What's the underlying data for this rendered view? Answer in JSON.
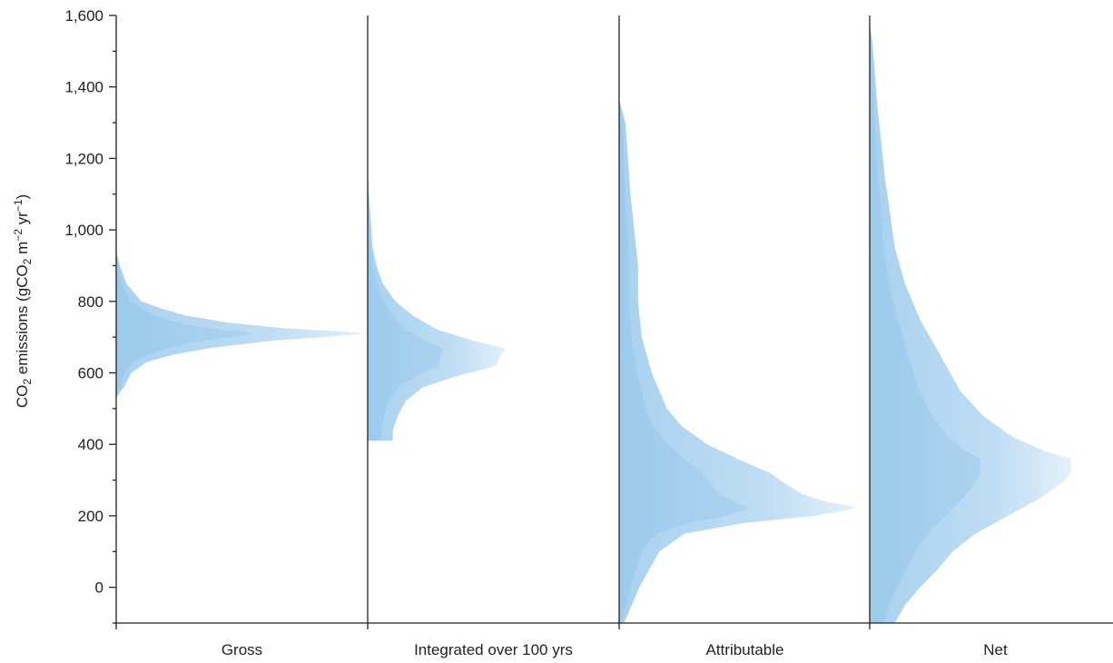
{
  "chart_data": {
    "type": "area",
    "categories": [
      "Gross",
      "Integrated over 100 yrs",
      "Attributable",
      "Net"
    ],
    "ylabel": {
      "prefix": "CO",
      "sub1": "2",
      "middle": " emissions (gCO",
      "sub2": "2",
      "unit_m": " m",
      "sup1": "−2",
      "unit_yr": " yr",
      "sup2": "−1",
      "suffix": ")"
    },
    "ylim": [
      -100,
      1600
    ],
    "yticks": [
      0,
      200,
      400,
      600,
      800,
      1000,
      1200,
      1400,
      1600
    ],
    "ytick_labels": [
      "0",
      "200",
      "400",
      "600",
      "800",
      "1,000",
      "1,200",
      "1,400",
      "1,600"
    ],
    "fill_color": "#62ade3",
    "distributions": [
      {
        "name": "Gross",
        "profile": [
          [
            530,
            0
          ],
          [
            560,
            0.03
          ],
          [
            600,
            0.06
          ],
          [
            630,
            0.12
          ],
          [
            650,
            0.22
          ],
          [
            670,
            0.38
          ],
          [
            690,
            0.62
          ],
          [
            700,
            0.82
          ],
          [
            710,
            0.99
          ],
          [
            715,
            0.92
          ],
          [
            725,
            0.66
          ],
          [
            740,
            0.45
          ],
          [
            760,
            0.28
          ],
          [
            780,
            0.18
          ],
          [
            800,
            0.1
          ],
          [
            850,
            0.04
          ],
          [
            900,
            0.015
          ],
          [
            940,
            0
          ]
        ]
      },
      {
        "name": "Integrated over 100 yrs",
        "profile": [
          [
            410,
            0
          ],
          [
            411,
            0.1
          ],
          [
            440,
            0.1
          ],
          [
            480,
            0.12
          ],
          [
            520,
            0.15
          ],
          [
            560,
            0.22
          ],
          [
            590,
            0.35
          ],
          [
            620,
            0.51
          ],
          [
            650,
            0.53
          ],
          [
            668,
            0.55
          ],
          [
            690,
            0.42
          ],
          [
            720,
            0.28
          ],
          [
            760,
            0.18
          ],
          [
            800,
            0.11
          ],
          [
            850,
            0.06
          ],
          [
            900,
            0.035
          ],
          [
            950,
            0.02
          ],
          [
            1050,
            0.01
          ],
          [
            1100,
            0.005
          ],
          [
            1160,
            0
          ]
        ]
      },
      {
        "name": "Attributable",
        "profile": [
          [
            -100,
            0.02
          ],
          [
            -50,
            0.05
          ],
          [
            0,
            0.08
          ],
          [
            50,
            0.12
          ],
          [
            100,
            0.16
          ],
          [
            150,
            0.26
          ],
          [
            180,
            0.5
          ],
          [
            200,
            0.78
          ],
          [
            215,
            0.9
          ],
          [
            225,
            0.94
          ],
          [
            240,
            0.82
          ],
          [
            260,
            0.73
          ],
          [
            290,
            0.66
          ],
          [
            320,
            0.6
          ],
          [
            350,
            0.5
          ],
          [
            400,
            0.35
          ],
          [
            450,
            0.25
          ],
          [
            500,
            0.19
          ],
          [
            600,
            0.13
          ],
          [
            700,
            0.09
          ],
          [
            800,
            0.075
          ],
          [
            900,
            0.075
          ],
          [
            1000,
            0.06
          ],
          [
            1100,
            0.045
          ],
          [
            1200,
            0.035
          ],
          [
            1300,
            0.025
          ],
          [
            1365,
            0
          ]
        ]
      },
      {
        "name": "Net",
        "profile": [
          [
            -100,
            0.1
          ],
          [
            -50,
            0.14
          ],
          [
            0,
            0.2
          ],
          [
            50,
            0.27
          ],
          [
            100,
            0.33
          ],
          [
            150,
            0.42
          ],
          [
            200,
            0.55
          ],
          [
            250,
            0.68
          ],
          [
            290,
            0.76
          ],
          [
            320,
            0.8
          ],
          [
            360,
            0.8
          ],
          [
            380,
            0.7
          ],
          [
            420,
            0.57
          ],
          [
            480,
            0.45
          ],
          [
            550,
            0.36
          ],
          [
            650,
            0.28
          ],
          [
            750,
            0.2
          ],
          [
            850,
            0.14
          ],
          [
            950,
            0.1
          ],
          [
            1050,
            0.08
          ],
          [
            1150,
            0.06
          ],
          [
            1250,
            0.045
          ],
          [
            1350,
            0.03
          ],
          [
            1450,
            0.02
          ],
          [
            1530,
            0.01
          ],
          [
            1580,
            0
          ]
        ]
      }
    ],
    "grid": false
  }
}
